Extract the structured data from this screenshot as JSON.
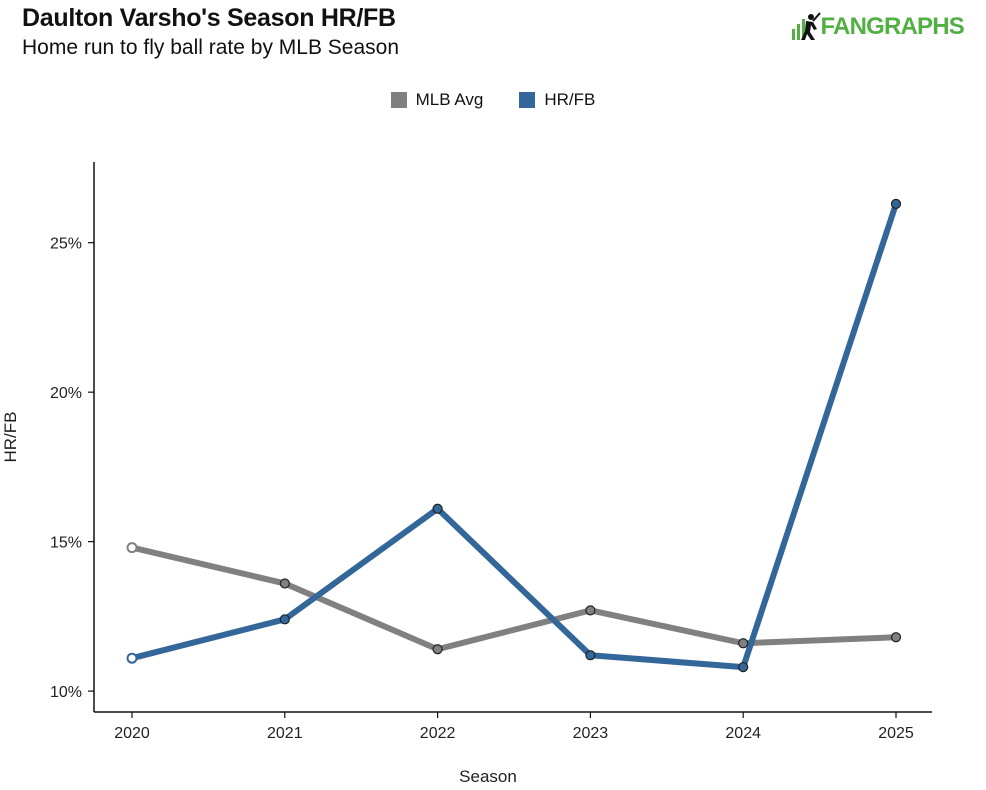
{
  "header": {
    "title": "Daulton Varsho's Season HR/FB",
    "subtitle": "Home run to fly ball rate by MLB Season",
    "logo_text": "FANGRAPHS"
  },
  "colors": {
    "mlb_avg": "#808080",
    "hr_fb": "#336699",
    "brand": "#52b043"
  },
  "chart_data": {
    "type": "line",
    "xlabel": "Season",
    "ylabel": "HR/FB",
    "x": [
      2020,
      2021,
      2022,
      2023,
      2024,
      2025
    ],
    "ylim": [
      9.3,
      27.7
    ],
    "yticks": [
      10,
      15,
      20,
      25
    ],
    "ytick_labels": [
      "10%",
      "15%",
      "20%",
      "25%"
    ],
    "xtick_labels": [
      "2020",
      "2021",
      "2022",
      "2023",
      "2024",
      "2025"
    ],
    "legend_position": "top-center",
    "grid": false,
    "series": [
      {
        "name": "MLB Avg",
        "color": "#808080",
        "values": [
          14.8,
          13.6,
          11.4,
          12.7,
          11.6,
          11.8
        ]
      },
      {
        "name": "HR/FB",
        "color": "#336699",
        "values": [
          11.1,
          12.4,
          16.1,
          11.2,
          10.8,
          26.3
        ]
      }
    ]
  }
}
